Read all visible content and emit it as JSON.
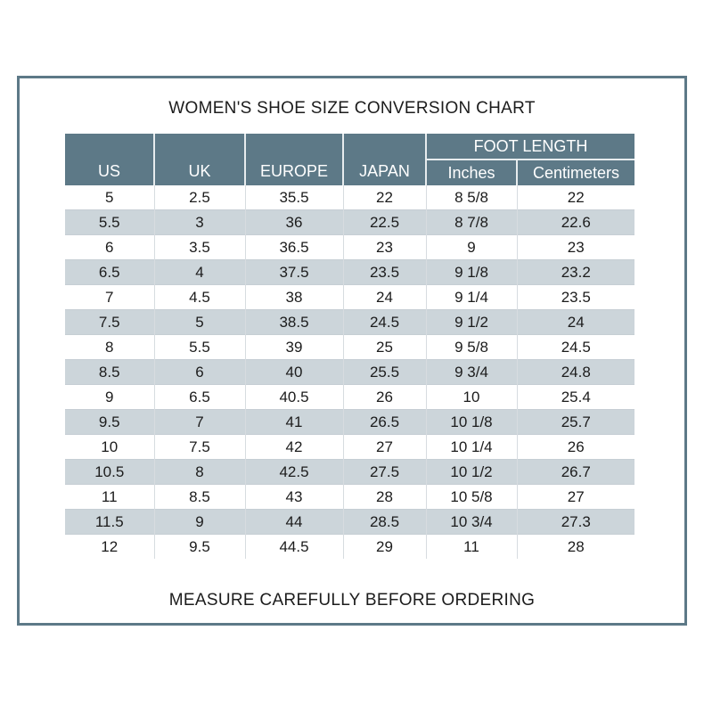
{
  "page": {
    "title": "WOMEN'S SHOE SIZE CONVERSION CHART",
    "footer": "MEASURE CAREFULLY BEFORE ORDERING"
  },
  "colors": {
    "header_bg": "#5d7987",
    "header_text": "#ffffff",
    "row_alt_bg": "#ccd5da",
    "panel_border": "#5d7987",
    "body_text": "#1c1c1c"
  },
  "table": {
    "headers": {
      "us": "US",
      "uk": "UK",
      "europe": "EUROPE",
      "japan": "JAPAN",
      "foot_length": "FOOT LENGTH",
      "inches": "Inches",
      "centimeters": "Centimeters"
    }
  },
  "chart_data": {
    "type": "table",
    "title": "WOMEN'S SHOE SIZE CONVERSION CHART",
    "column_groups": [
      {
        "label": "FOOT LENGTH",
        "spans": [
          "Inches",
          "Centimeters"
        ]
      }
    ],
    "columns": [
      "US",
      "UK",
      "EUROPE",
      "JAPAN",
      "Inches",
      "Centimeters"
    ],
    "rows": [
      [
        "5",
        "2.5",
        "35.5",
        "22",
        "8 5/8",
        "22"
      ],
      [
        "5.5",
        "3",
        "36",
        "22.5",
        "8 7/8",
        "22.6"
      ],
      [
        "6",
        "3.5",
        "36.5",
        "23",
        "9",
        "23"
      ],
      [
        "6.5",
        "4",
        "37.5",
        "23.5",
        "9 1/8",
        "23.2"
      ],
      [
        "7",
        "4.5",
        "38",
        "24",
        "9 1/4",
        "23.5"
      ],
      [
        "7.5",
        "5",
        "38.5",
        "24.5",
        "9 1/2",
        "24"
      ],
      [
        "8",
        "5.5",
        "39",
        "25",
        "9 5/8",
        "24.5"
      ],
      [
        "8.5",
        "6",
        "40",
        "25.5",
        "9 3/4",
        "24.8"
      ],
      [
        "9",
        "6.5",
        "40.5",
        "26",
        "10",
        "25.4"
      ],
      [
        "9.5",
        "7",
        "41",
        "26.5",
        "10 1/8",
        "25.7"
      ],
      [
        "10",
        "7.5",
        "42",
        "27",
        "10 1/4",
        "26"
      ],
      [
        "10.5",
        "8",
        "42.5",
        "27.5",
        "10 1/2",
        "26.7"
      ],
      [
        "11",
        "8.5",
        "43",
        "28",
        "10 5/8",
        "27"
      ],
      [
        "11.5",
        "9",
        "44",
        "28.5",
        "10 3/4",
        "27.3"
      ],
      [
        "12",
        "9.5",
        "44.5",
        "29",
        "11",
        "28"
      ]
    ]
  }
}
